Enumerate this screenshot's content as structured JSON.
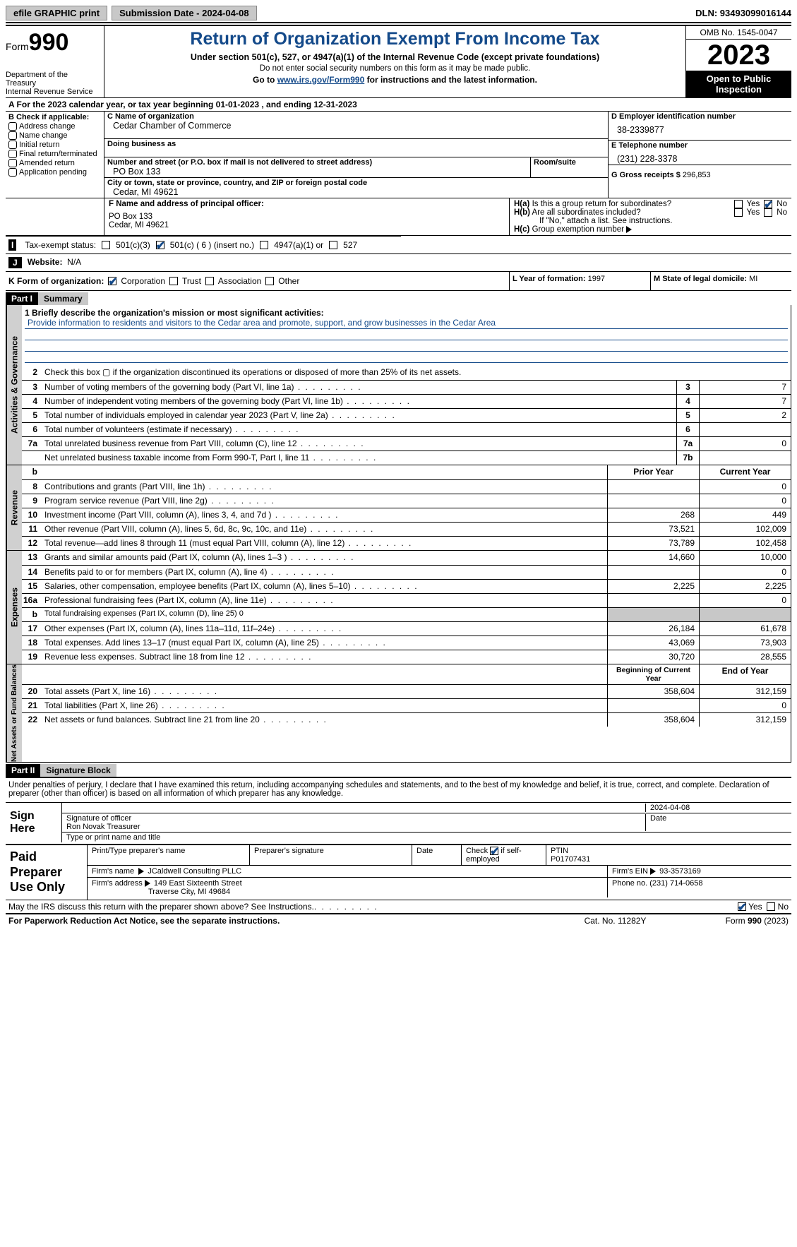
{
  "topbar": {
    "efile": "efile GRAPHIC print",
    "submission": "Submission Date - 2024-04-08",
    "dln": "DLN: 93493099016144"
  },
  "header": {
    "form_prefix": "Form",
    "form_num": "990",
    "title": "Return of Organization Exempt From Income Tax",
    "sub1": "Under section 501(c), 527, or 4947(a)(1) of the Internal Revenue Code (except private foundations)",
    "sub2": "Do not enter social security numbers on this form as it may be made public.",
    "sub3_pre": "Go to ",
    "sub3_link": "www.irs.gov/Form990",
    "sub3_post": " for instructions and the latest information.",
    "dept": "Department of the Treasury\nInternal Revenue Service",
    "omb": "OMB No. 1545-0047",
    "year": "2023",
    "inspect": "Open to Public Inspection"
  },
  "calendar": "A  For the 2023 calendar year, or tax year beginning 01-01-2023   , and ending 12-31-2023",
  "boxB": {
    "label": "B Check if applicable:",
    "items": [
      "Address change",
      "Name change",
      "Initial return",
      "Final return/terminated",
      "Amended return",
      "Application pending"
    ]
  },
  "boxC": {
    "name_lab": "C Name of organization",
    "name": "Cedar Chamber of Commerce",
    "dba_lab": "Doing business as",
    "addr_lab": "Number and street (or P.O. box if mail is not delivered to street address)",
    "addr": "PO Box 133",
    "room_lab": "Room/suite",
    "city_lab": "City or town, state or province, country, and ZIP or foreign postal code",
    "city": "Cedar, MI  49621"
  },
  "boxD": {
    "lab": "D Employer identification number",
    "val": "38-2339877"
  },
  "boxE": {
    "lab": "E Telephone number",
    "val": "(231) 228-3378"
  },
  "boxG": {
    "lab": "G Gross receipts $",
    "val": "296,853"
  },
  "boxF": {
    "lab": "F  Name and address of principal officer:",
    "l1": "PO Box 133",
    "l2": "Cedar, MI  49621"
  },
  "boxH": {
    "a_lab": "H(a)  Is this a group return for subordinates?",
    "b_lab": "H(b)  Are all subordinates included?",
    "note": "If \"No,\" attach a list. See instructions.",
    "c_lab": "H(c)  Group exemption number",
    "yes": "Yes",
    "no": "No"
  },
  "taxstatus": {
    "lab": "I",
    "text": "Tax-exempt status:",
    "opt1": "501(c)(3)",
    "opt2": "501(c) ( 6 ) (insert no.)",
    "opt3": "4947(a)(1) or",
    "opt4": "527"
  },
  "website": {
    "lab": "J",
    "text": "Website:",
    "val": "N/A"
  },
  "boxK": {
    "lab": "K Form of organization:",
    "opts": [
      "Corporation",
      "Trust",
      "Association",
      "Other"
    ]
  },
  "boxL": {
    "lab": "L Year of formation:",
    "val": "1997"
  },
  "boxM": {
    "lab": "M State of legal domicile:",
    "val": "MI"
  },
  "part1": {
    "header": "Part I",
    "title": "Summary"
  },
  "mission": {
    "lab": "1    Briefly describe the organization's mission or most significant activities:",
    "text": "Provide information to residents and visitors to the Cedar area and promote, support, and grow businesses in the Cedar Area"
  },
  "lines_gov": [
    {
      "n": "2",
      "d": "Check this box ▢ if the organization discontinued its operations or disposed of more than 25% of its net assets."
    },
    {
      "n": "3",
      "d": "Number of voting members of the governing body (Part VI, line 1a)",
      "nc": "3",
      "v": "7"
    },
    {
      "n": "4",
      "d": "Number of independent voting members of the governing body (Part VI, line 1b)",
      "nc": "4",
      "v": "7"
    },
    {
      "n": "5",
      "d": "Total number of individuals employed in calendar year 2023 (Part V, line 2a)",
      "nc": "5",
      "v": "2"
    },
    {
      "n": "6",
      "d": "Total number of volunteers (estimate if necessary)",
      "nc": "6",
      "v": ""
    },
    {
      "n": "7a",
      "d": "Total unrelated business revenue from Part VIII, column (C), line 12",
      "nc": "7a",
      "v": "0"
    },
    {
      "n": "",
      "d": "Net unrelated business taxable income from Form 990-T, Part I, line 11",
      "nc": "7b",
      "v": ""
    }
  ],
  "rev_header": {
    "b": "b",
    "py": "Prior Year",
    "cy": "Current Year"
  },
  "lines_rev": [
    {
      "n": "8",
      "d": "Contributions and grants (Part VIII, line 1h)",
      "p": "",
      "c": "0"
    },
    {
      "n": "9",
      "d": "Program service revenue (Part VIII, line 2g)",
      "p": "",
      "c": "0"
    },
    {
      "n": "10",
      "d": "Investment income (Part VIII, column (A), lines 3, 4, and 7d )",
      "p": "268",
      "c": "449"
    },
    {
      "n": "11",
      "d": "Other revenue (Part VIII, column (A), lines 5, 6d, 8c, 9c, 10c, and 11e)",
      "p": "73,521",
      "c": "102,009"
    },
    {
      "n": "12",
      "d": "Total revenue—add lines 8 through 11 (must equal Part VIII, column (A), line 12)",
      "p": "73,789",
      "c": "102,458"
    }
  ],
  "lines_exp": [
    {
      "n": "13",
      "d": "Grants and similar amounts paid (Part IX, column (A), lines 1–3 )",
      "p": "14,660",
      "c": "10,000"
    },
    {
      "n": "14",
      "d": "Benefits paid to or for members (Part IX, column (A), line 4)",
      "p": "",
      "c": "0"
    },
    {
      "n": "15",
      "d": "Salaries, other compensation, employee benefits (Part IX, column (A), lines 5–10)",
      "p": "2,225",
      "c": "2,225"
    },
    {
      "n": "16a",
      "d": "Professional fundraising fees (Part IX, column (A), line 11e)",
      "p": "",
      "c": "0"
    },
    {
      "n": "b",
      "d": "Total fundraising expenses (Part IX, column (D), line 25) 0",
      "shaded": true
    },
    {
      "n": "17",
      "d": "Other expenses (Part IX, column (A), lines 11a–11d, 11f–24e)",
      "p": "26,184",
      "c": "61,678"
    },
    {
      "n": "18",
      "d": "Total expenses. Add lines 13–17 (must equal Part IX, column (A), line 25)",
      "p": "43,069",
      "c": "73,903"
    },
    {
      "n": "19",
      "d": "Revenue less expenses. Subtract line 18 from line 12",
      "p": "30,720",
      "c": "28,555"
    }
  ],
  "na_header": {
    "py": "Beginning of Current Year",
    "cy": "End of Year"
  },
  "lines_na": [
    {
      "n": "20",
      "d": "Total assets (Part X, line 16)",
      "p": "358,604",
      "c": "312,159"
    },
    {
      "n": "21",
      "d": "Total liabilities (Part X, line 26)",
      "p": "",
      "c": "0"
    },
    {
      "n": "22",
      "d": "Net assets or fund balances. Subtract line 21 from line 20",
      "p": "358,604",
      "c": "312,159"
    }
  ],
  "sidelabels": {
    "gov": "Activities & Governance",
    "rev": "Revenue",
    "exp": "Expenses",
    "na": "Net Assets or Fund Balances"
  },
  "part2": {
    "header": "Part II",
    "title": "Signature Block"
  },
  "sig": {
    "decl": "Under penalties of perjury, I declare that I have examined this return, including accompanying schedules and statements, and to the best of my knowledge and belief, it is true, correct, and complete. Declaration of preparer (other than officer) is based on all information of which preparer has any knowledge.",
    "here": "Sign Here",
    "date": "2024-04-08",
    "sig_lab": "Signature of officer",
    "officer": "Ron Novak  Treasurer",
    "type_lab": "Type or print name and title",
    "date_lab": "Date"
  },
  "prep": {
    "header": "Paid Preparer Use Only",
    "c1": "Print/Type preparer's name",
    "c2": "Preparer's signature",
    "c3": "Date",
    "c4_pre": "Check",
    "c4_post": "if self-employed",
    "ptin_lab": "PTIN",
    "ptin": "P01707431",
    "firm_lab": "Firm's name",
    "firm": "JCaldwell Consulting PLLC",
    "ein_lab": "Firm's EIN",
    "ein": "93-3573169",
    "addr_lab": "Firm's address",
    "addr1": "149 East Sixteenth Street",
    "addr2": "Traverse City, MI  49684",
    "phone_lab": "Phone no.",
    "phone": "(231) 714-0658"
  },
  "discuss": {
    "q": "May the IRS discuss this return with the preparer shown above? See Instructions.",
    "yes": "Yes",
    "no": "No"
  },
  "footer": {
    "left": "For Paperwork Reduction Act Notice, see the separate instructions.",
    "mid": "Cat. No. 11282Y",
    "right_pre": "Form ",
    "right_b": "990",
    "right_post": " (2023)"
  }
}
